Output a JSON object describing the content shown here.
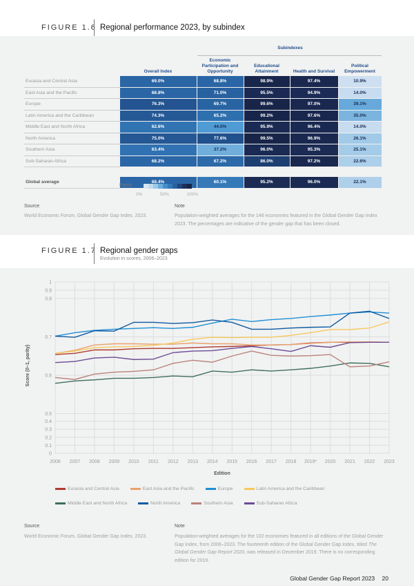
{
  "fig16": {
    "label": "FIGURE 1.6",
    "title": "Regional performance 2023, by subindex",
    "group_header": "Subindexes",
    "columns": [
      "Overall Index",
      "Economic Participation and Opportunity",
      "Educational Attainment",
      "Health and Survival",
      "Political Empowerment"
    ],
    "rows": [
      {
        "region": "Eurasia and Central Asia",
        "values": [
          "69.0%",
          "68.8%",
          "98.9%",
          "97.4%",
          "10.9%"
        ]
      },
      {
        "region": "East Asia and the Pacific",
        "values": [
          "68.8%",
          "71.0%",
          "95.5%",
          "94.9%",
          "14.0%"
        ]
      },
      {
        "region": "Europe",
        "values": [
          "76.3%",
          "69.7%",
          "99.6%",
          "97.0%",
          "39.1%"
        ]
      },
      {
        "region": "Latin America and the Caribbean",
        "values": [
          "74.3%",
          "65.2%",
          "99.2%",
          "97.6%",
          "35.0%"
        ]
      },
      {
        "region": "Middle East and North Africa",
        "values": [
          "62.6%",
          "44.0%",
          "95.9%",
          "96.4%",
          "14.0%"
        ]
      },
      {
        "region": "North America",
        "values": [
          "75.0%",
          "77.6%",
          "99.5%",
          "96.9%",
          "26.1%"
        ]
      },
      {
        "region": "Southern Asia",
        "values": [
          "63.4%",
          "37.2%",
          "96.0%",
          "95.3%",
          "25.1%"
        ]
      },
      {
        "region": "Sub-Saharan Africa",
        "values": [
          "68.2%",
          "67.2%",
          "86.0%",
          "97.2%",
          "22.6%"
        ]
      }
    ],
    "global": {
      "region": "Global average",
      "values": [
        "68.4%",
        "60.1%",
        "95.2%",
        "96.0%",
        "22.1%"
      ]
    },
    "scale": {
      "label": "Parity",
      "ticks": [
        "0%",
        "50%",
        "100%"
      ]
    },
    "source_label": "Source",
    "source": "World Economic Forum, Global Gender Gap Index, 2023.",
    "note_label": "Note",
    "note": "Population-weighted averages for the 146 economies featured in the Global Gender Gap Index 2023. The percentages are indicative of the gender gap that has been closed."
  },
  "fig17": {
    "label": "FIGURE 1.7",
    "title": "Regional gender gaps",
    "subtitle": "Evolution in scores, 2006–2023",
    "source_label": "Source",
    "source": "World Economic Forum, Global Gender Gap Index, 2023.",
    "note_label": "Note",
    "note_pre": "Population-weighted averages for the 102 economies featured in all editions of the Global Gender Gap Index, from 2006–2023. The fourteenth edition of the Global Gender Gap Index, titled ",
    "note_italic": "The Global Gender Gap Report 2020",
    "note_post": ", was released in December 2019. There is no corresponding edition for 2019."
  },
  "chart_data": {
    "type": "line",
    "xlabel": "Edition",
    "ylabel": "Score (0–1, parity)",
    "categories": [
      "2006",
      "2007",
      "2008",
      "2009",
      "2010",
      "2011",
      "2012",
      "2013",
      "2014",
      "2015",
      "2016",
      "2017",
      "2018",
      "2019*",
      "2020",
      "2021",
      "2022",
      "2023"
    ],
    "yticks": [
      "0",
      "0.1",
      "0.2",
      "0.3",
      "0.4",
      "0.5",
      "0.6",
      "0.7",
      "0.8",
      "0.9",
      "1"
    ],
    "ylim": [
      0,
      1
    ],
    "grid": true,
    "legend": "bottom",
    "series": [
      {
        "name": "Eurasia and Central Asia",
        "color": "#b03a2e",
        "values": [
          0.654,
          0.657,
          0.666,
          0.666,
          0.669,
          0.67,
          0.67,
          0.672,
          0.674,
          0.675,
          0.677,
          0.679,
          0.68,
          0.684,
          0.686,
          0.686,
          0.686,
          0.686
        ]
      },
      {
        "name": "East Asia and the Pacific",
        "color": "#e9a26c",
        "values": [
          0.657,
          0.665,
          0.679,
          0.682,
          0.682,
          0.681,
          0.681,
          0.684,
          0.682,
          0.682,
          0.679,
          0.679,
          0.68,
          0.683,
          0.686,
          0.687,
          0.687,
          0.686
        ]
      },
      {
        "name": "Europe",
        "color": "#1e8fd5",
        "values": [
          0.702,
          0.711,
          0.717,
          0.72,
          0.722,
          0.724,
          0.722,
          0.725,
          0.736,
          0.746,
          0.74,
          0.745,
          0.748,
          0.753,
          0.757,
          0.762,
          0.765,
          0.762
        ]
      },
      {
        "name": "Latin America and the Caribbean",
        "color": "#f6c95e",
        "values": [
          0.657,
          0.663,
          0.672,
          0.674,
          0.675,
          0.678,
          0.684,
          0.694,
          0.699,
          0.698,
          0.699,
          0.699,
          0.704,
          0.711,
          0.719,
          0.719,
          0.723,
          0.739
        ]
      },
      {
        "name": "Middle East and North Africa",
        "color": "#3e6f58",
        "values": [
          0.579,
          0.585,
          0.588,
          0.592,
          0.592,
          0.594,
          0.598,
          0.596,
          0.611,
          0.608,
          0.614,
          0.611,
          0.614,
          0.618,
          0.624,
          0.632,
          0.631,
          0.622
        ]
      },
      {
        "name": "North America",
        "color": "#0c5aa2",
        "values": [
          0.702,
          0.699,
          0.716,
          0.715,
          0.738,
          0.738,
          0.735,
          0.737,
          0.744,
          0.738,
          0.72,
          0.72,
          0.723,
          0.725,
          0.726,
          0.762,
          0.767,
          0.748
        ]
      },
      {
        "name": "Southern Asia",
        "color": "#b9837b",
        "values": [
          0.594,
          0.589,
          0.603,
          0.608,
          0.61,
          0.614,
          0.631,
          0.639,
          0.634,
          0.65,
          0.663,
          0.652,
          0.65,
          0.651,
          0.654,
          0.622,
          0.624,
          0.635
        ]
      },
      {
        "name": "Sub-Saharan Africa",
        "color": "#6b4c94",
        "values": [
          0.633,
          0.636,
          0.645,
          0.647,
          0.641,
          0.642,
          0.659,
          0.663,
          0.664,
          0.67,
          0.675,
          0.669,
          0.662,
          0.677,
          0.673,
          0.685,
          0.686,
          0.686
        ]
      }
    ]
  },
  "footer": {
    "report": "Global Gender Gap Report 2023",
    "page": "20"
  }
}
